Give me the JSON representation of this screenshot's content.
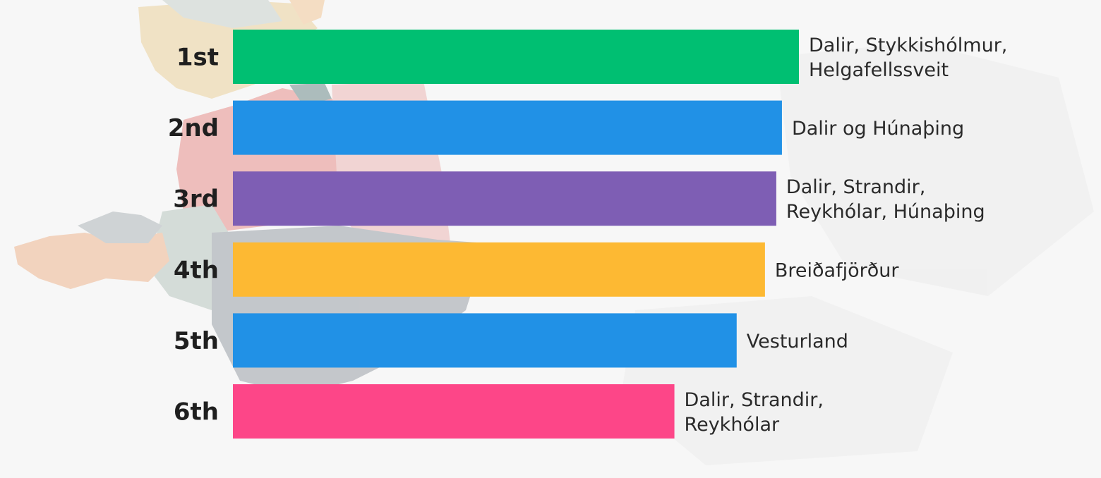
{
  "chart_data": {
    "type": "bar",
    "orientation": "horizontal",
    "title": "",
    "xlabel": "",
    "ylabel": "",
    "grid": false,
    "legend": "none",
    "xlim": [
      0,
      100
    ],
    "categories": [
      "1st",
      "2nd",
      "3rd",
      "4th",
      "5th",
      "6th"
    ],
    "values": [
      100,
      97,
      96,
      94,
      89,
      78
    ],
    "colors": [
      "#00bf72",
      "#2191e6",
      "#7e5eb4",
      "#fdb933",
      "#2191e6",
      "#fd4688"
    ],
    "bar_labels": [
      [
        "Dalir, Stykkishólmur,",
        "Helgafellssveit"
      ],
      [
        "Dalir og Húnaþing"
      ],
      [
        "Dalir, Strandir,",
        "Reykhólar, Húnaþing"
      ],
      [
        "Breiðafjörður"
      ],
      [
        "Vesturland"
      ],
      [
        "Dalir, Strandir,",
        "Reykhólar"
      ]
    ]
  }
}
